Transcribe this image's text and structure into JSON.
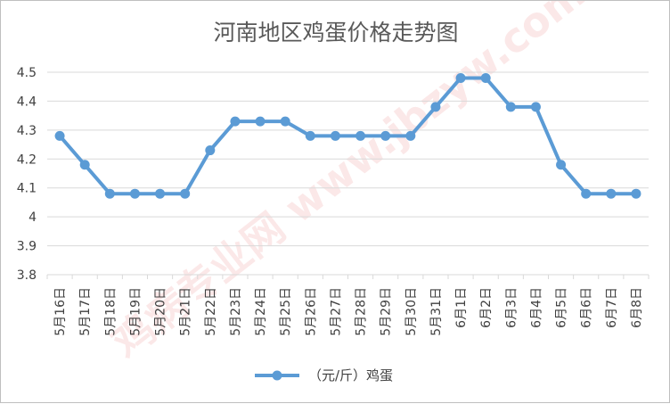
{
  "chart_data": {
    "type": "line",
    "title": "河南地区鸡蛋价格走势图",
    "categories": [
      "5月16日",
      "5月17日",
      "5月18日",
      "5月19日",
      "5月20日",
      "5月21日",
      "5月22日",
      "5月23日",
      "5月24日",
      "5月25日",
      "5月26日",
      "5月27日",
      "5月28日",
      "5月29日",
      "5月30日",
      "5月31日",
      "6月1日",
      "6月2日",
      "6月3日",
      "6月4日",
      "6月5日",
      "6月6日",
      "6月7日",
      "6月8日"
    ],
    "series": [
      {
        "name": "（元/斤）鸡蛋",
        "values": [
          4.28,
          4.18,
          4.08,
          4.08,
          4.08,
          4.08,
          4.23,
          4.33,
          4.33,
          4.33,
          4.28,
          4.28,
          4.28,
          4.28,
          4.28,
          4.38,
          4.48,
          4.48,
          4.38,
          4.38,
          4.18,
          4.08,
          4.08,
          4.08
        ]
      }
    ],
    "ylim": [
      3.8,
      4.5
    ],
    "yticks": [
      "3.8",
      "3.9",
      "4",
      "4.1",
      "4.2",
      "4.3",
      "4.4",
      "4.5"
    ],
    "grid": "horizontal",
    "legend_position": "bottom",
    "line_color": "#5b9bd5",
    "grid_color": "#d9d9d9",
    "watermark_text": "鸡病专业网 www.jbzyw.com"
  }
}
